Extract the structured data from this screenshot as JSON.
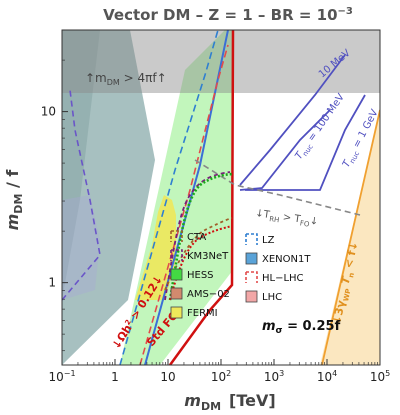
{
  "chart_data": {
    "type": "area",
    "title": "Vector DM  –  Z = 1  –  BR = 10",
    "title_exp": "−3",
    "xlabel": "m",
    "xlabel_sub": "DM",
    "xlabel_unit": "[TeV]",
    "ylabel": "m",
    "ylabel_sub": "DM",
    "ylabel_tail": " / f",
    "x_scale": "log",
    "y_scale": "log",
    "xlim": [
      0.1,
      100000
    ],
    "ylim": [
      0.33,
      30
    ],
    "x_ticks": [
      {
        "value": 0.1,
        "label": "10",
        "exp": "−1"
      },
      {
        "value": 1,
        "label": "1",
        "exp": ""
      },
      {
        "value": 10,
        "label": "10",
        "exp": ""
      },
      {
        "value": 100,
        "label": "10",
        "exp": "2"
      },
      {
        "value": 1000,
        "label": "10",
        "exp": "3"
      },
      {
        "value": 10000,
        "label": "10",
        "exp": "4"
      },
      {
        "value": 100000,
        "label": "10",
        "exp": "5"
      }
    ],
    "y_ticks": [
      {
        "value": 1,
        "label": "1"
      },
      {
        "value": 10,
        "label": "10"
      }
    ],
    "legend": {
      "placement": "bottom-center",
      "items": [
        {
          "label": "CTA",
          "style": "dashed",
          "color": "#a0602a"
        },
        {
          "label": "KM3NeT",
          "style": "dashed",
          "color": "#7a1f7a"
        },
        {
          "label": "HESS",
          "style": "filled",
          "color": "#43d943"
        },
        {
          "label": "AMS−02",
          "style": "filled",
          "color": "#d28a6e"
        },
        {
          "label": "FERMI",
          "style": "filled",
          "color": "#eee85a"
        },
        {
          "label": "LZ",
          "style": "dashed",
          "color": "#2f7fd0"
        },
        {
          "label": "XENON1T",
          "style": "filled",
          "color": "#5aa3d8"
        },
        {
          "label": "HL−LHC",
          "style": "dashed",
          "color": "#e24b4b"
        },
        {
          "label": "LHC",
          "style": "filled",
          "color": "#f2a7a7"
        }
      ]
    },
    "annotations": {
      "m_sigma": "m",
      "m_sigma_sub": "σ",
      "m_sigma_value": " = 0.25f",
      "perturbativity": "↑m",
      "perturbativity_sub": "DM",
      "perturbativity_tail": " > 4πf↑",
      "t_rh": "↓T",
      "t_rh_sub1": "RH",
      "t_rh_mid": " > T",
      "t_rh_sub2": "FO",
      "t_rh_tail": "↓",
      "std_fo": "Std FO",
      "relic": "↓Ωh",
      "relic_exp": "2",
      "relic_tail": " > 0.12↓",
      "gamma_wp": "↓3γ",
      "gamma_wp_sub": "WP",
      "gamma_wp_tail": " T",
      "gamma_wp_sub2": "n",
      "gamma_wp_end": " < f↓",
      "tnuc_10mev": "10 MeV",
      "tnuc_100mev": "T",
      "tnuc_100mev_sub": "nuc",
      "tnuc_100mev_tail": " = 100 MeV",
      "tnuc_1gev": "T",
      "tnuc_1gev_sub": "nuc",
      "tnuc_1gev_tail": " = 1 GeV"
    },
    "series": [
      {
        "name": "FERMI",
        "kind": "region",
        "color": "#eee85a",
        "x": [
          5,
          7,
          10,
          15,
          20,
          30,
          40
        ],
        "y": [
          1.3,
          2,
          3.5,
          8,
          13,
          20,
          30
        ]
      },
      {
        "name": "HESS",
        "kind": "region",
        "color": "#43d943",
        "x": [
          7,
          10,
          20,
          40,
          60,
          80,
          90
        ],
        "y": [
          1.5,
          3,
          8,
          25,
          30,
          30,
          30
        ]
      },
      {
        "name": "XENON1T",
        "kind": "region",
        "color": "#5aa3d8",
        "x": [
          0.1,
          0.4,
          1,
          3,
          6
        ],
        "y": [
          30,
          4,
          1.5,
          0.6,
          0.33
        ]
      },
      {
        "name": "LHC",
        "kind": "region",
        "color": "#f2a7a7",
        "x": [
          1,
          2,
          5,
          10,
          20
        ],
        "y": [
          0.33,
          0.4,
          0.55,
          0.7,
          0.9
        ]
      },
      {
        "name": "KM3NeT",
        "kind": "line",
        "color": "#7a1f7a",
        "x": [
          6,
          8,
          12,
          20,
          35,
          55,
          80
        ],
        "y": [
          1.2,
          1.6,
          2.4,
          4,
          5.2,
          5.8,
          6.2
        ]
      },
      {
        "name": "CTA",
        "kind": "line",
        "color": "#a0602a",
        "x": [
          6,
          10,
          15,
          20,
          30,
          50,
          70
        ],
        "y": [
          1.0,
          1.5,
          2.0,
          2.6,
          3.2,
          3.6,
          3.9
        ]
      },
      {
        "name": "LZ",
        "kind": "line",
        "color": "#2f7fd0",
        "x": [
          0.8,
          2,
          5,
          12,
          25,
          40,
          60
        ],
        "y": [
          0.33,
          0.7,
          2.2,
          7,
          14,
          20,
          30
        ]
      },
      {
        "name": "HL−LHC",
        "kind": "line",
        "color": "#e24b4b",
        "x": [
          1,
          2,
          6,
          20,
          60
        ],
        "y": [
          0.33,
          0.5,
          1.4,
          5,
          16
        ]
      }
    ]
  }
}
